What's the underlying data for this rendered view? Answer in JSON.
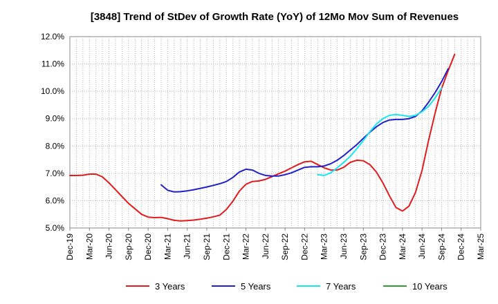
{
  "chart_data": {
    "type": "line",
    "title": "[3848]  Trend of StDev of Growth Rate (YoY) of 12Mo Mov Sum of Revenues",
    "xlabel": "",
    "ylabel": "",
    "x_tick_labels": [
      "Dec-19",
      "Mar-20",
      "Jun-20",
      "Sep-20",
      "Dec-20",
      "Mar-21",
      "Jun-21",
      "Sep-21",
      "Dec-21",
      "Mar-22",
      "Jun-22",
      "Sep-22",
      "Dec-22",
      "Mar-23",
      "Jun-23",
      "Sep-23",
      "Dec-23",
      "Mar-24",
      "Jun-24",
      "Sep-24",
      "Dec-24",
      "Mar-25"
    ],
    "y_tick_labels": [
      "5.0%",
      "6.0%",
      "7.0%",
      "8.0%",
      "9.0%",
      "10.0%",
      "11.0%",
      "12.0%"
    ],
    "y_ticks": [
      5,
      6,
      7,
      8,
      9,
      10,
      11,
      12
    ],
    "ylim": [
      5,
      12
    ],
    "x_range_months": [
      0,
      63
    ],
    "x_unit": "months since Dec-19",
    "grid": true,
    "legend_position": "bottom",
    "series": [
      {
        "name": "3 Years",
        "color": "#e31a1c",
        "x": [
          0,
          1,
          2,
          3,
          4,
          5,
          6,
          7,
          8,
          9,
          10,
          11,
          12,
          13,
          14,
          15,
          16,
          17,
          18,
          19,
          20,
          21,
          22,
          23,
          24,
          25,
          26,
          27,
          28,
          29,
          30,
          31,
          32,
          33,
          34,
          35,
          36,
          37,
          38,
          39,
          40,
          41,
          42,
          43,
          44,
          45,
          46,
          47,
          48,
          49,
          50,
          51,
          52,
          53,
          54,
          55,
          56,
          57,
          58,
          59,
          60
        ],
        "values": [
          6.92,
          6.92,
          6.93,
          6.97,
          6.97,
          6.87,
          6.65,
          6.4,
          6.15,
          5.9,
          5.7,
          5.5,
          5.4,
          5.38,
          5.39,
          5.34,
          5.28,
          5.26,
          5.27,
          5.29,
          5.32,
          5.36,
          5.41,
          5.47,
          5.68,
          5.98,
          6.35,
          6.6,
          6.7,
          6.72,
          6.78,
          6.88,
          6.98,
          7.08,
          7.2,
          7.32,
          7.42,
          7.44,
          7.32,
          7.2,
          7.12,
          7.12,
          7.22,
          7.4,
          7.48,
          7.46,
          7.32,
          7.05,
          6.65,
          6.18,
          5.75,
          5.62,
          5.8,
          6.3,
          7.1,
          8.2,
          9.2,
          10.1,
          10.75,
          11.35,
          null
        ],
        "x_trim": 60
      },
      {
        "name": "5 Years",
        "color": "#1f1fc8",
        "x": [
          14,
          15,
          16,
          17,
          18,
          19,
          20,
          21,
          22,
          23,
          24,
          25,
          26,
          27,
          28,
          29,
          30,
          31,
          32,
          33,
          34,
          35,
          36,
          37,
          38,
          39,
          40,
          41,
          42,
          43,
          44,
          45,
          46,
          47,
          48,
          49,
          50,
          51,
          52,
          53,
          54,
          55,
          56,
          57,
          58,
          59,
          60
        ],
        "values": [
          6.58,
          6.38,
          6.32,
          6.33,
          6.36,
          6.4,
          6.45,
          6.5,
          6.56,
          6.62,
          6.7,
          6.85,
          7.05,
          7.15,
          7.12,
          7.0,
          6.92,
          6.9,
          6.9,
          6.95,
          7.02,
          7.12,
          7.22,
          7.24,
          7.24,
          7.27,
          7.35,
          7.48,
          7.65,
          7.85,
          8.05,
          8.28,
          8.5,
          8.7,
          8.86,
          8.95,
          8.97,
          8.97,
          9.0,
          9.08,
          9.28,
          9.6,
          9.95,
          10.35,
          10.82,
          null,
          null
        ]
      },
      {
        "name": "7 Years",
        "color": "#17e6f0",
        "x": [
          38,
          39,
          40,
          41,
          42,
          43,
          44,
          45,
          46,
          47,
          48,
          49,
          50,
          51,
          52,
          53,
          54,
          55,
          56,
          57,
          58,
          59,
          60
        ],
        "values": [
          6.95,
          6.92,
          7.02,
          7.2,
          7.4,
          7.62,
          7.9,
          8.2,
          8.52,
          8.8,
          9.0,
          9.12,
          9.15,
          9.12,
          9.08,
          9.12,
          9.25,
          9.45,
          9.75,
          10.12,
          null,
          null,
          null
        ]
      },
      {
        "name": "10 Years",
        "color": "#2ca02c",
        "x": [],
        "values": []
      }
    ]
  }
}
